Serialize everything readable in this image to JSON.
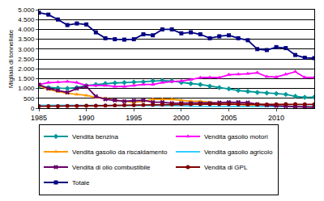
{
  "chart_data": {
    "type": "line",
    "y_label": "Migliaia di tonnellate",
    "x": [
      1985,
      1986,
      1987,
      1988,
      1989,
      1990,
      1991,
      1992,
      1993,
      1994,
      1995,
      1996,
      1997,
      1998,
      1999,
      2000,
      2001,
      2002,
      2003,
      2004,
      2005,
      2006,
      2007,
      2008,
      2009,
      2010,
      2011,
      2012,
      2013,
      2014
    ],
    "xlim": [
      1985,
      2014
    ],
    "xticks": [
      1985,
      1990,
      1995,
      2000,
      2005,
      2010
    ],
    "ylim": [
      0,
      5000
    ],
    "yticks": [
      0,
      500,
      {
        "value": 1000,
        "label": "1.000"
      },
      {
        "value": 1500,
        "label": "1.500"
      },
      {
        "value": 2000,
        "label": "2.000"
      },
      {
        "value": 2500,
        "label": "2.500"
      },
      {
        "value": 3000,
        "label": "3.000"
      },
      {
        "value": 3500,
        "label": "3.500"
      },
      {
        "value": 4000,
        "label": "4.000"
      },
      {
        "value": 4500,
        "label": "4.500"
      },
      {
        "value": 5000,
        "label": "5.000"
      }
    ],
    "grid": true,
    "legend": "bottom",
    "series": [
      {
        "name": "Vendita benzina",
        "color": "#009999",
        "marker": "diamond",
        "values": [
          1100,
          1050,
          1020,
          1000,
          1050,
          1150,
          1200,
          1250,
          1280,
          1300,
          1320,
          1330,
          1380,
          1400,
          1380,
          1300,
          1250,
          1200,
          1120,
          1050,
          980,
          900,
          850,
          800,
          770,
          740,
          700,
          600,
          550,
          560
        ]
      },
      {
        "name": "Vendita gasolio motori",
        "color": "#ff00ff",
        "marker": "triangle",
        "values": [
          1200,
          1300,
          1320,
          1350,
          1300,
          1150,
          1150,
          1150,
          1100,
          1100,
          1150,
          1200,
          1200,
          1300,
          1350,
          1380,
          1450,
          1550,
          1560,
          1550,
          1700,
          1720,
          1750,
          1800,
          1600,
          1580,
          1720,
          1850,
          1560,
          1560
        ]
      },
      {
        "name": "Vendita gasolio da riscaldamento",
        "color": "#ff9900",
        "marker": "triangle",
        "values": [
          1150,
          950,
          850,
          750,
          700,
          650,
          550,
          500,
          400,
          350,
          300,
          350,
          450,
          450,
          450,
          400,
          350,
          350,
          300,
          250,
          250,
          200,
          150,
          150,
          130,
          120,
          100,
          80,
          60,
          50
        ]
      },
      {
        "name": "Vendita gasolio agricolo",
        "color": "#33ccff",
        "marker": "none",
        "values": [
          150,
          150,
          150,
          150,
          150,
          150,
          150,
          150,
          150,
          150,
          150,
          150,
          150,
          150,
          150,
          130,
          100,
          100,
          100,
          100,
          100,
          100,
          100,
          100,
          100,
          100,
          100,
          100,
          80,
          80
        ]
      },
      {
        "name": "Vendita di olio combustibile",
        "color": "#660066",
        "marker": "x",
        "values": [
          1200,
          1000,
          900,
          800,
          1000,
          1100,
          600,
          450,
          400,
          350,
          380,
          400,
          300,
          300,
          250,
          250,
          250,
          250,
          250,
          280,
          300,
          300,
          280,
          200,
          150,
          120,
          100,
          80,
          60,
          50
        ]
      },
      {
        "name": "Vendita di GPL",
        "color": "#800000",
        "marker": "circle",
        "values": [
          100,
          100,
          100,
          110,
          110,
          120,
          120,
          130,
          140,
          150,
          150,
          160,
          170,
          180,
          190,
          200,
          200,
          200,
          210,
          200,
          200,
          190,
          180,
          180,
          180,
          190,
          200,
          200,
          190,
          190
        ]
      },
      {
        "name": "Totale",
        "color": "#000080",
        "marker": "square",
        "values": [
          4850,
          4750,
          4500,
          4220,
          4300,
          4250,
          3850,
          3550,
          3500,
          3480,
          3500,
          3750,
          3700,
          4000,
          4000,
          3800,
          3850,
          3750,
          3550,
          3650,
          3700,
          3550,
          3450,
          3000,
          2950,
          3100,
          3050,
          2700,
          2560,
          2540
        ]
      }
    ]
  }
}
